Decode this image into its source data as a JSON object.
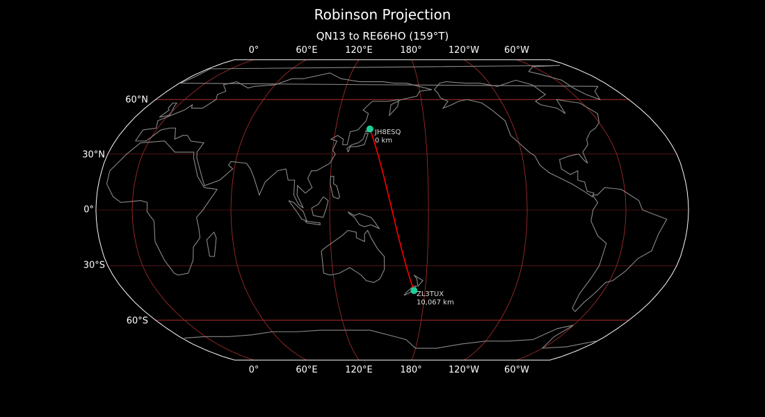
{
  "title": "Robinson Projection",
  "subtitle": "QN13 to RE66HO (159°T)",
  "projection": {
    "type": "robinson",
    "central_longitude": 158
  },
  "colors": {
    "background": "#000000",
    "coastline": "#8a8a8a",
    "gridline": "#b03030",
    "path": "#ff0000",
    "station": "#1ad19a",
    "border": "#ffffff"
  },
  "longitude_ticks": [
    "0°",
    "60°E",
    "120°E",
    "180°",
    "120°W",
    "60°W"
  ],
  "latitude_ticks": [
    "60°N",
    "30°N",
    "0°",
    "30°S",
    "60°S"
  ],
  "stations": [
    {
      "call": "JH8ESQ",
      "distance": "0 km",
      "lat": 43.5,
      "lon": 143.0
    },
    {
      "call": "ZL3TUX",
      "distance": "10,067 km",
      "lat": -43.4,
      "lon": 172.6
    }
  ]
}
